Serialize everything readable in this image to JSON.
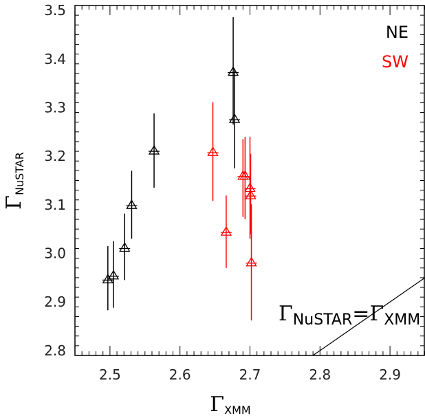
{
  "chart_data": {
    "type": "scatter",
    "xlim": [
      2.45,
      2.95
    ],
    "ylim": [
      2.79,
      3.51
    ],
    "x_ticks": [
      "2.5",
      "2.6",
      "2.7",
      "2.8",
      "2.9"
    ],
    "y_ticks": [
      "2.8",
      "2.9",
      "3.0",
      "3.1",
      "3.2",
      "3.3",
      "3.4",
      "3.5"
    ],
    "xlabel": {
      "symbol": "Γ",
      "sub": "XMM"
    },
    "ylabel": {
      "symbol": "Γ",
      "sub": "NuSTAR"
    },
    "grid": false,
    "legend_position": "top-right",
    "series": [
      {
        "name": "NE",
        "color": "#000000",
        "points": [
          {
            "x": 2.497,
            "y": 2.945,
            "ylo": 2.883,
            "yhi": 3.015
          },
          {
            "x": 2.505,
            "y": 2.953,
            "ylo": 2.888,
            "yhi": 3.025
          },
          {
            "x": 2.521,
            "y": 3.01,
            "ylo": 2.945,
            "yhi": 3.082
          },
          {
            "x": 2.531,
            "y": 3.098,
            "ylo": 3.03,
            "yhi": 3.17
          },
          {
            "x": 2.563,
            "y": 3.21,
            "ylo": 3.135,
            "yhi": 3.288
          },
          {
            "x": 2.676,
            "y": 3.372,
            "ylo": 3.265,
            "yhi": 3.486
          },
          {
            "x": 2.678,
            "y": 3.275,
            "ylo": 3.175,
            "yhi": 3.38
          }
        ]
      },
      {
        "name": "SW",
        "color": "#ff0000",
        "points": [
          {
            "x": 2.647,
            "y": 3.207,
            "ylo": 3.108,
            "yhi": 3.311
          },
          {
            "x": 2.666,
            "y": 3.043,
            "ylo": 2.97,
            "yhi": 3.119
          },
          {
            "x": 2.69,
            "y": 3.158,
            "ylo": 3.075,
            "yhi": 3.235
          },
          {
            "x": 2.693,
            "y": 3.158,
            "ylo": 3.07,
            "yhi": 3.24
          },
          {
            "x": 2.7,
            "y": 3.133,
            "ylo": 3.03,
            "yhi": 3.24
          },
          {
            "x": 2.701,
            "y": 3.118,
            "ylo": 3.04,
            "yhi": 3.205
          },
          {
            "x": 2.702,
            "y": 2.98,
            "ylo": 2.862,
            "yhi": 3.101
          }
        ]
      }
    ],
    "annotation": {
      "left_symbol": "Γ",
      "left_sub": "NuSTAR",
      "equals": "=",
      "right_symbol": "Γ",
      "right_sub": "XMM"
    }
  }
}
